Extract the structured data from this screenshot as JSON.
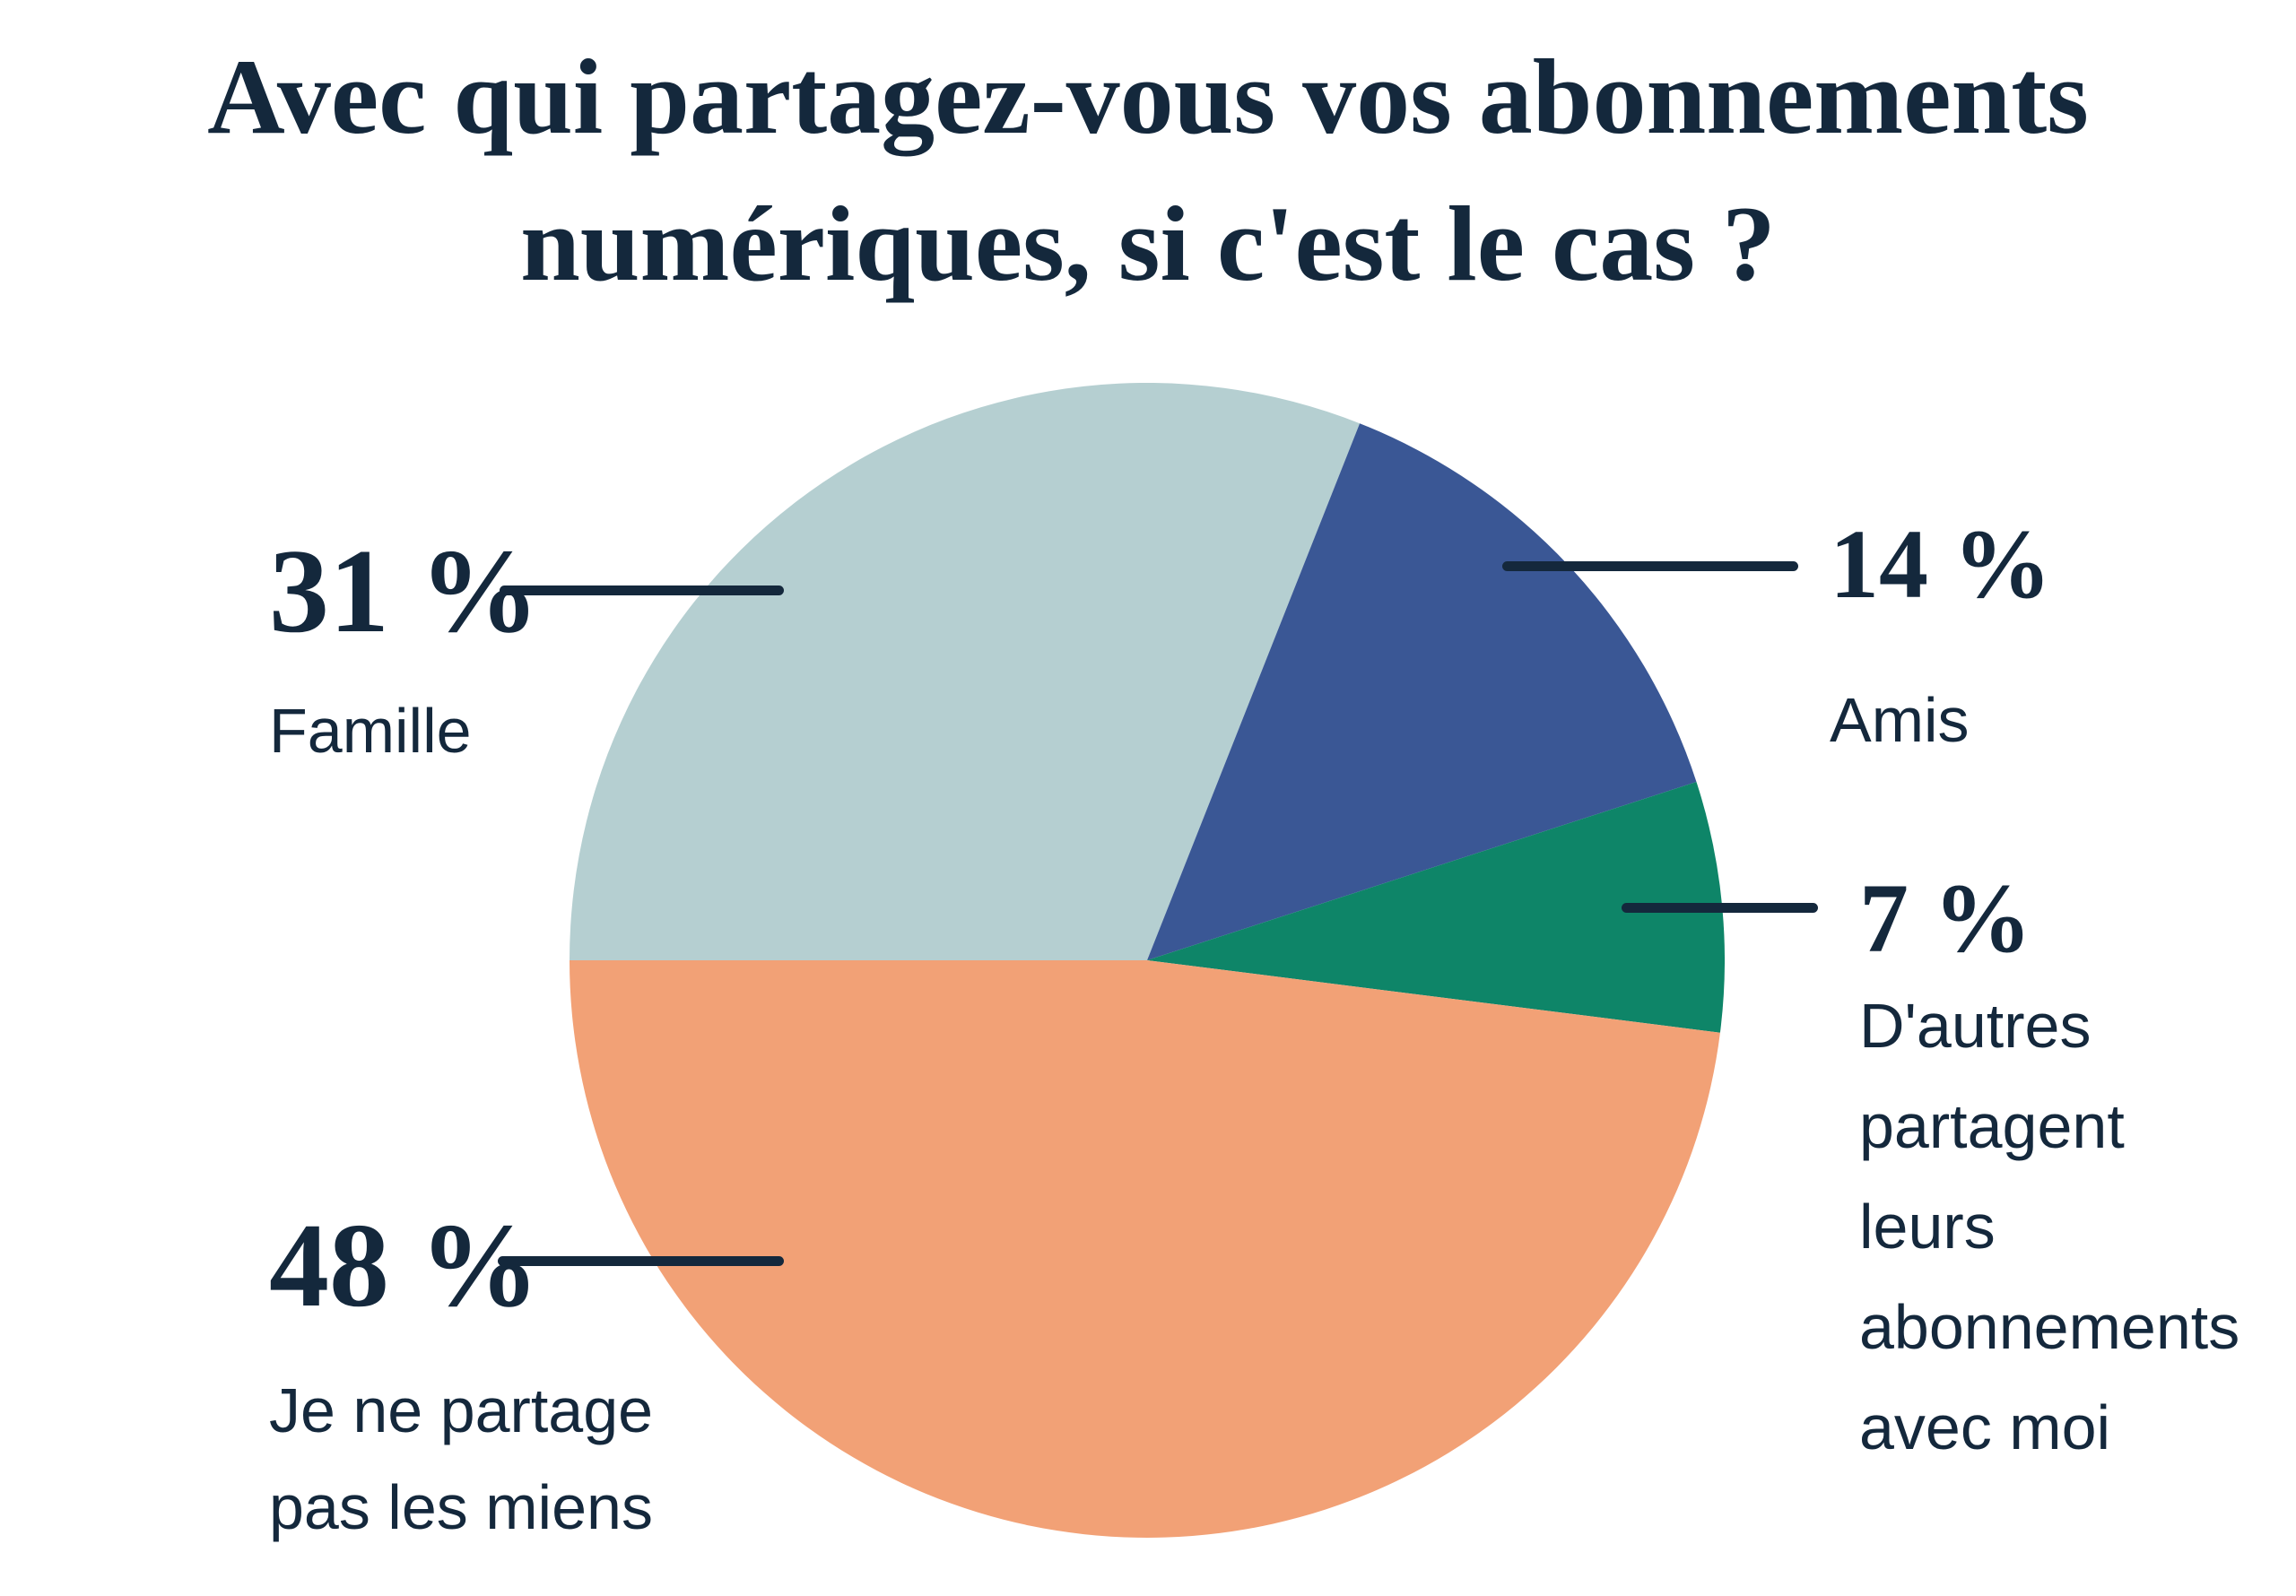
{
  "title": {
    "text": "Avec qui partagez-vous vos abonnements numériques, si c'est le cas ?",
    "lines": [
      "Avec qui partagez-vous vos abonnements",
      "numériques, si c'est le cas ?"
    ]
  },
  "colors": {
    "background": "#ffffff",
    "text": "#14283c",
    "callout_line": "#14283c"
  },
  "chart_data": {
    "type": "pie",
    "title": "Avec qui partagez-vous vos abonnements numériques, si c'est le cas ?",
    "unit": "%",
    "legend": "none",
    "labels_position": "outside-callouts",
    "start_angle_deg_clockwise_from_top": 270,
    "direction": "clockwise",
    "slices": [
      {
        "label": "Famille",
        "label_lines": [
          "Famille"
        ],
        "value": 31,
        "pct_label": "31 %",
        "color": "#b5cfd1"
      },
      {
        "label": "Amis",
        "label_lines": [
          "Amis"
        ],
        "value": 14,
        "pct_label": "14 %",
        "color": "#3a5795"
      },
      {
        "label": "D'autres partagent leurs abonnements avec moi",
        "label_lines": [
          "D'autres partagent",
          "leurs abonnements",
          "avec moi"
        ],
        "value": 7,
        "pct_label": "7 %",
        "color": "#0e8568"
      },
      {
        "label": "Je ne partage pas les miens",
        "label_lines": [
          "Je ne partage",
          "pas les miens"
        ],
        "value": 48,
        "pct_label": "48 %",
        "color": "#f2a176"
      }
    ]
  }
}
